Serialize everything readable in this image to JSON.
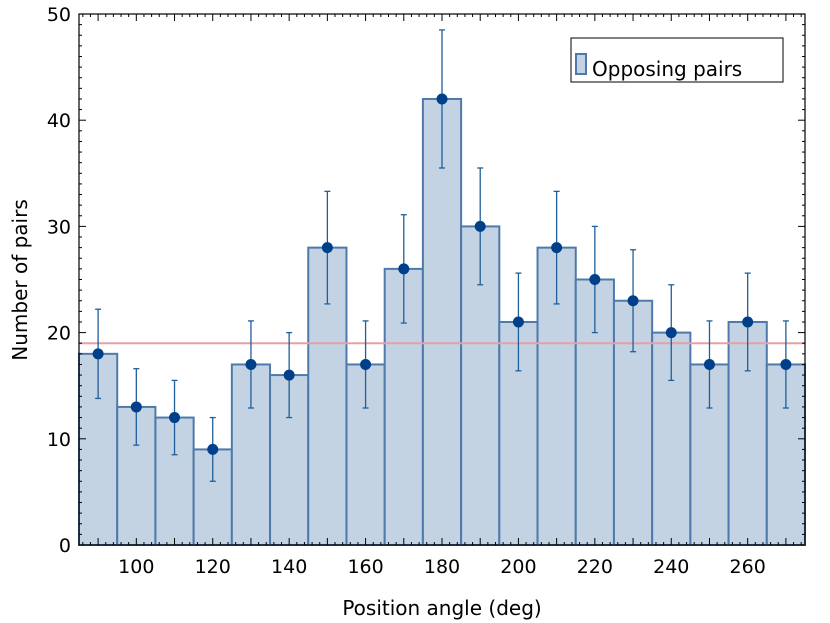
{
  "chart_data": {
    "type": "bar",
    "xlabel": "Position angle (deg)",
    "ylabel": "Number of pairs",
    "xlim": [
      85,
      275
    ],
    "ylim": [
      0,
      50
    ],
    "x_ticks": [
      100,
      120,
      140,
      160,
      180,
      200,
      220,
      240,
      260
    ],
    "y_ticks": [
      0,
      10,
      20,
      30,
      40,
      50
    ],
    "bin_width": 10,
    "series": [
      {
        "name": "Opposing pairs",
        "x": [
          90,
          100,
          110,
          120,
          130,
          140,
          150,
          160,
          170,
          180,
          190,
          200,
          210,
          220,
          230,
          240,
          250,
          260,
          270
        ],
        "values": [
          18,
          13,
          12,
          9,
          17,
          16,
          28,
          17,
          26,
          42,
          30,
          21,
          28,
          25,
          23,
          20,
          17,
          21,
          17
        ],
        "error_low": [
          4.2,
          3.6,
          3.5,
          3.0,
          4.1,
          4.0,
          5.3,
          4.1,
          5.1,
          6.5,
          5.5,
          4.6,
          5.3,
          5.0,
          4.8,
          4.5,
          4.1,
          4.6,
          4.1
        ],
        "error_high": [
          4.2,
          3.6,
          3.5,
          3.0,
          4.1,
          4.0,
          5.3,
          4.1,
          5.1,
          6.5,
          5.5,
          4.6,
          5.3,
          5.0,
          4.8,
          4.5,
          4.1,
          4.6,
          4.1
        ]
      }
    ],
    "reference_line": {
      "y": 19,
      "color": "#e8a0a8"
    },
    "legend": {
      "position": "top-right",
      "entries": [
        "Opposing pairs"
      ]
    },
    "colors": {
      "bar_fill": "#c3d3e3",
      "bar_edge": "#4d7aab",
      "point": "#003f8a",
      "errorbar": "#1f5f9a"
    },
    "grid": false
  }
}
